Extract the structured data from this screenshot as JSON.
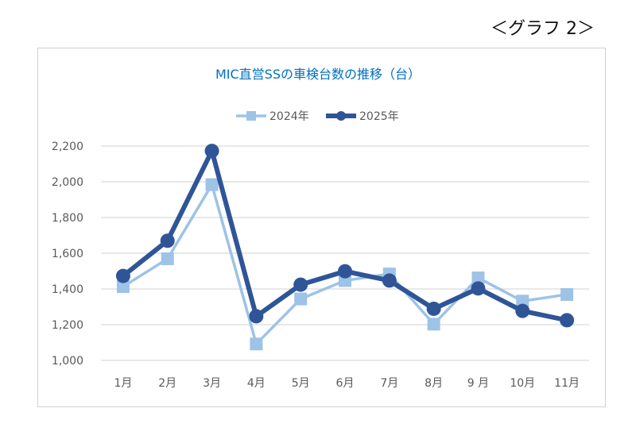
{
  "caption": "＜グラフ 2＞",
  "chart_data": {
    "type": "line",
    "title": "MIC直営SSの車検台数の推移（台）",
    "categories": [
      "1月",
      "2月",
      "3月",
      "4月",
      "5月",
      "6月",
      "7月",
      "8月",
      "9 月",
      "10月",
      "11月"
    ],
    "series": [
      {
        "name": "2024年",
        "color": "#9DC3E6",
        "marker": "square",
        "values": [
          1413,
          1569,
          1984,
          1092,
          1344,
          1447,
          1484,
          1203,
          1462,
          1332,
          1369
        ]
      },
      {
        "name": "2025年",
        "color": "#2F5597",
        "marker": "circle",
        "values": [
          1473,
          1670,
          2173,
          1247,
          1424,
          1499,
          1447,
          1289,
          1403,
          1277,
          1225
        ]
      }
    ],
    "ylim": [
      1000,
      2200
    ],
    "yticks": [
      1000,
      1200,
      1400,
      1600,
      1800,
      2000,
      2200
    ],
    "ytick_labels": [
      "1,000",
      "1,200",
      "1,400",
      "1,600",
      "1,800",
      "2,000",
      "2,200"
    ],
    "grid": true,
    "legend": "top-center",
    "xlabel": "",
    "ylabel": ""
  }
}
